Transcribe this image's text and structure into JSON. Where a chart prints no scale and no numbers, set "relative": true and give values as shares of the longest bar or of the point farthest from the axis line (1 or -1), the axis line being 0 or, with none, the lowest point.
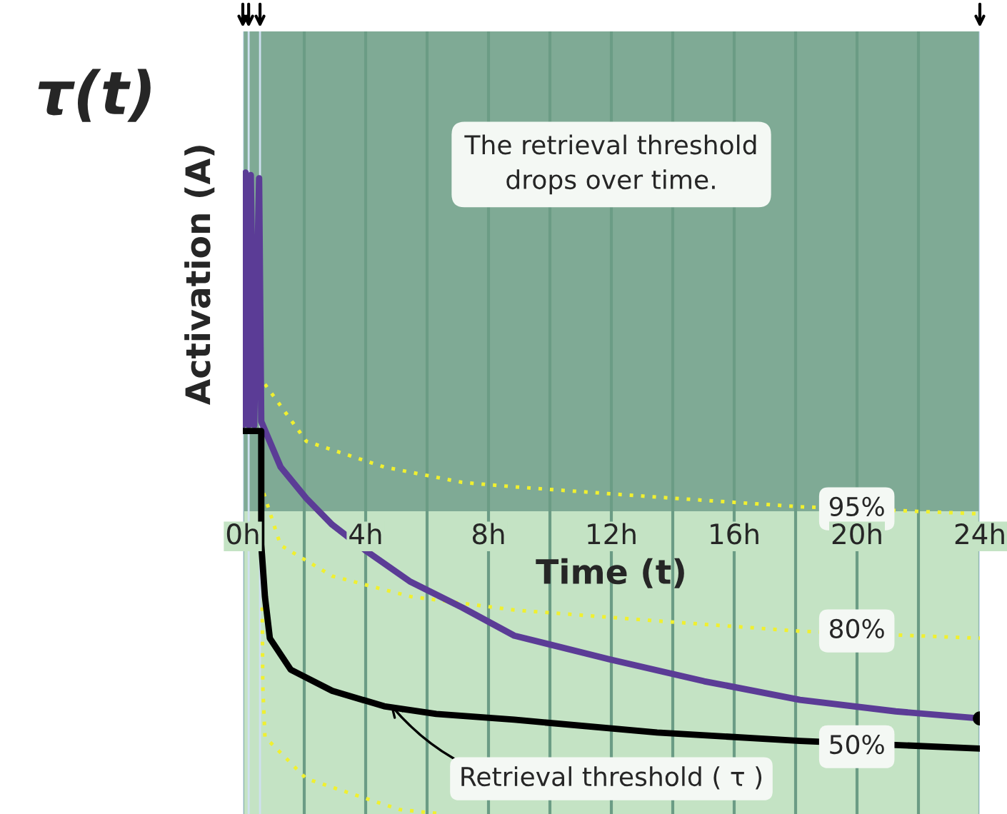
{
  "chart_data": {
    "type": "line",
    "title": "τ(t)",
    "xlabel": "Time (t)",
    "ylabel": "Activation (A)",
    "relative": true,
    "xlim": [
      0,
      24
    ],
    "xticks": [
      {
        "value": 0,
        "label": "0h"
      },
      {
        "value": 2,
        "label": null
      },
      {
        "value": 4,
        "label": "4h"
      },
      {
        "value": 6,
        "label": null
      },
      {
        "value": 8,
        "label": "8h"
      },
      {
        "value": 10,
        "label": null
      },
      {
        "value": 12,
        "label": "12h"
      },
      {
        "value": 14,
        "label": null
      },
      {
        "value": 16,
        "label": "16h"
      },
      {
        "value": 18,
        "label": null
      },
      {
        "value": 20,
        "label": "20h"
      },
      {
        "value": 22,
        "label": null
      },
      {
        "value": 24,
        "label": "24h"
      }
    ],
    "tick_labels": "x",
    "grid": "x",
    "legend": false,
    "series": [
      {
        "color": "#f0f030",
        "line_style": "dotted",
        "x": [
          0.72,
          2.07,
          4.6,
          7.14,
          8.84,
          13.49,
          18.14,
          24
        ],
        "values": [
          0.67,
          0.581,
          0.541,
          0.517,
          0.51,
          0.494,
          0.479,
          0.468
        ]
      },
      {
        "color": "#f0f030",
        "line_style": "dotted",
        "x": [
          0.68,
          1.23,
          2.91,
          5.46,
          8.84,
          13.49,
          18.14,
          24
        ],
        "values": [
          0.5,
          0.419,
          0.371,
          0.339,
          0.318,
          0.301,
          0.285,
          0.274
        ]
      },
      {
        "color": "#f0f030",
        "line_style": "dotted",
        "x": [
          0.63,
          0.65,
          0.72,
          2.07,
          5.1,
          6.5
        ],
        "values": [
          0.322,
          0.2,
          0.12,
          0.055,
          0.007,
          0
        ]
      },
      {
        "color": "#5b3c96",
        "line_style": "solid",
        "x": [
          0,
          0.09,
          0.19,
          0.26,
          0.37,
          0.53,
          0.6,
          1.23,
          2.07,
          2.91,
          4.02,
          5.46,
          7.14,
          8.84,
          11.95,
          15.02,
          18.14,
          21.26,
          24
        ],
        "values": [
          0.606,
          1.0,
          0.606,
          0.996,
          0.606,
          0.991,
          0.612,
          0.541,
          0.492,
          0.451,
          0.41,
          0.362,
          0.322,
          0.278,
          0.241,
          0.207,
          0.178,
          0.16,
          0.149
        ]
      },
      {
        "color": "#000000",
        "line_style": "solid",
        "x": [
          0,
          0.6,
          0.6,
          0.72,
          0.88,
          1.56,
          2.91,
          4.6,
          6.3,
          8.84,
          13.49,
          18.14,
          24
        ],
        "values": [
          0.597,
          0.597,
          0.42,
          0.339,
          0.274,
          0.225,
          0.192,
          0.168,
          0.156,
          0.147,
          0.127,
          0.114,
          0.102
        ]
      },
      {
        "type": "scatter",
        "color": "#000000",
        "marker": "circle",
        "x": [
          24
        ],
        "values": [
          0.149
        ]
      }
    ],
    "bands": [
      {
        "axis": "y",
        "from": 0.472,
        "to": 1.22,
        "color": "#7faa95"
      }
    ],
    "ref_lines": [
      {
        "axis": "x",
        "value": 0
      },
      {
        "axis": "x",
        "value": 0.19
      },
      {
        "axis": "x",
        "value": 0.56
      },
      {
        "axis": "x",
        "value": 24
      }
    ],
    "annotations": [
      "The retrieval threshold\ndrops over time.",
      "Retrieval threshold ( τ )",
      "95%",
      "80%",
      "50%"
    ]
  }
}
